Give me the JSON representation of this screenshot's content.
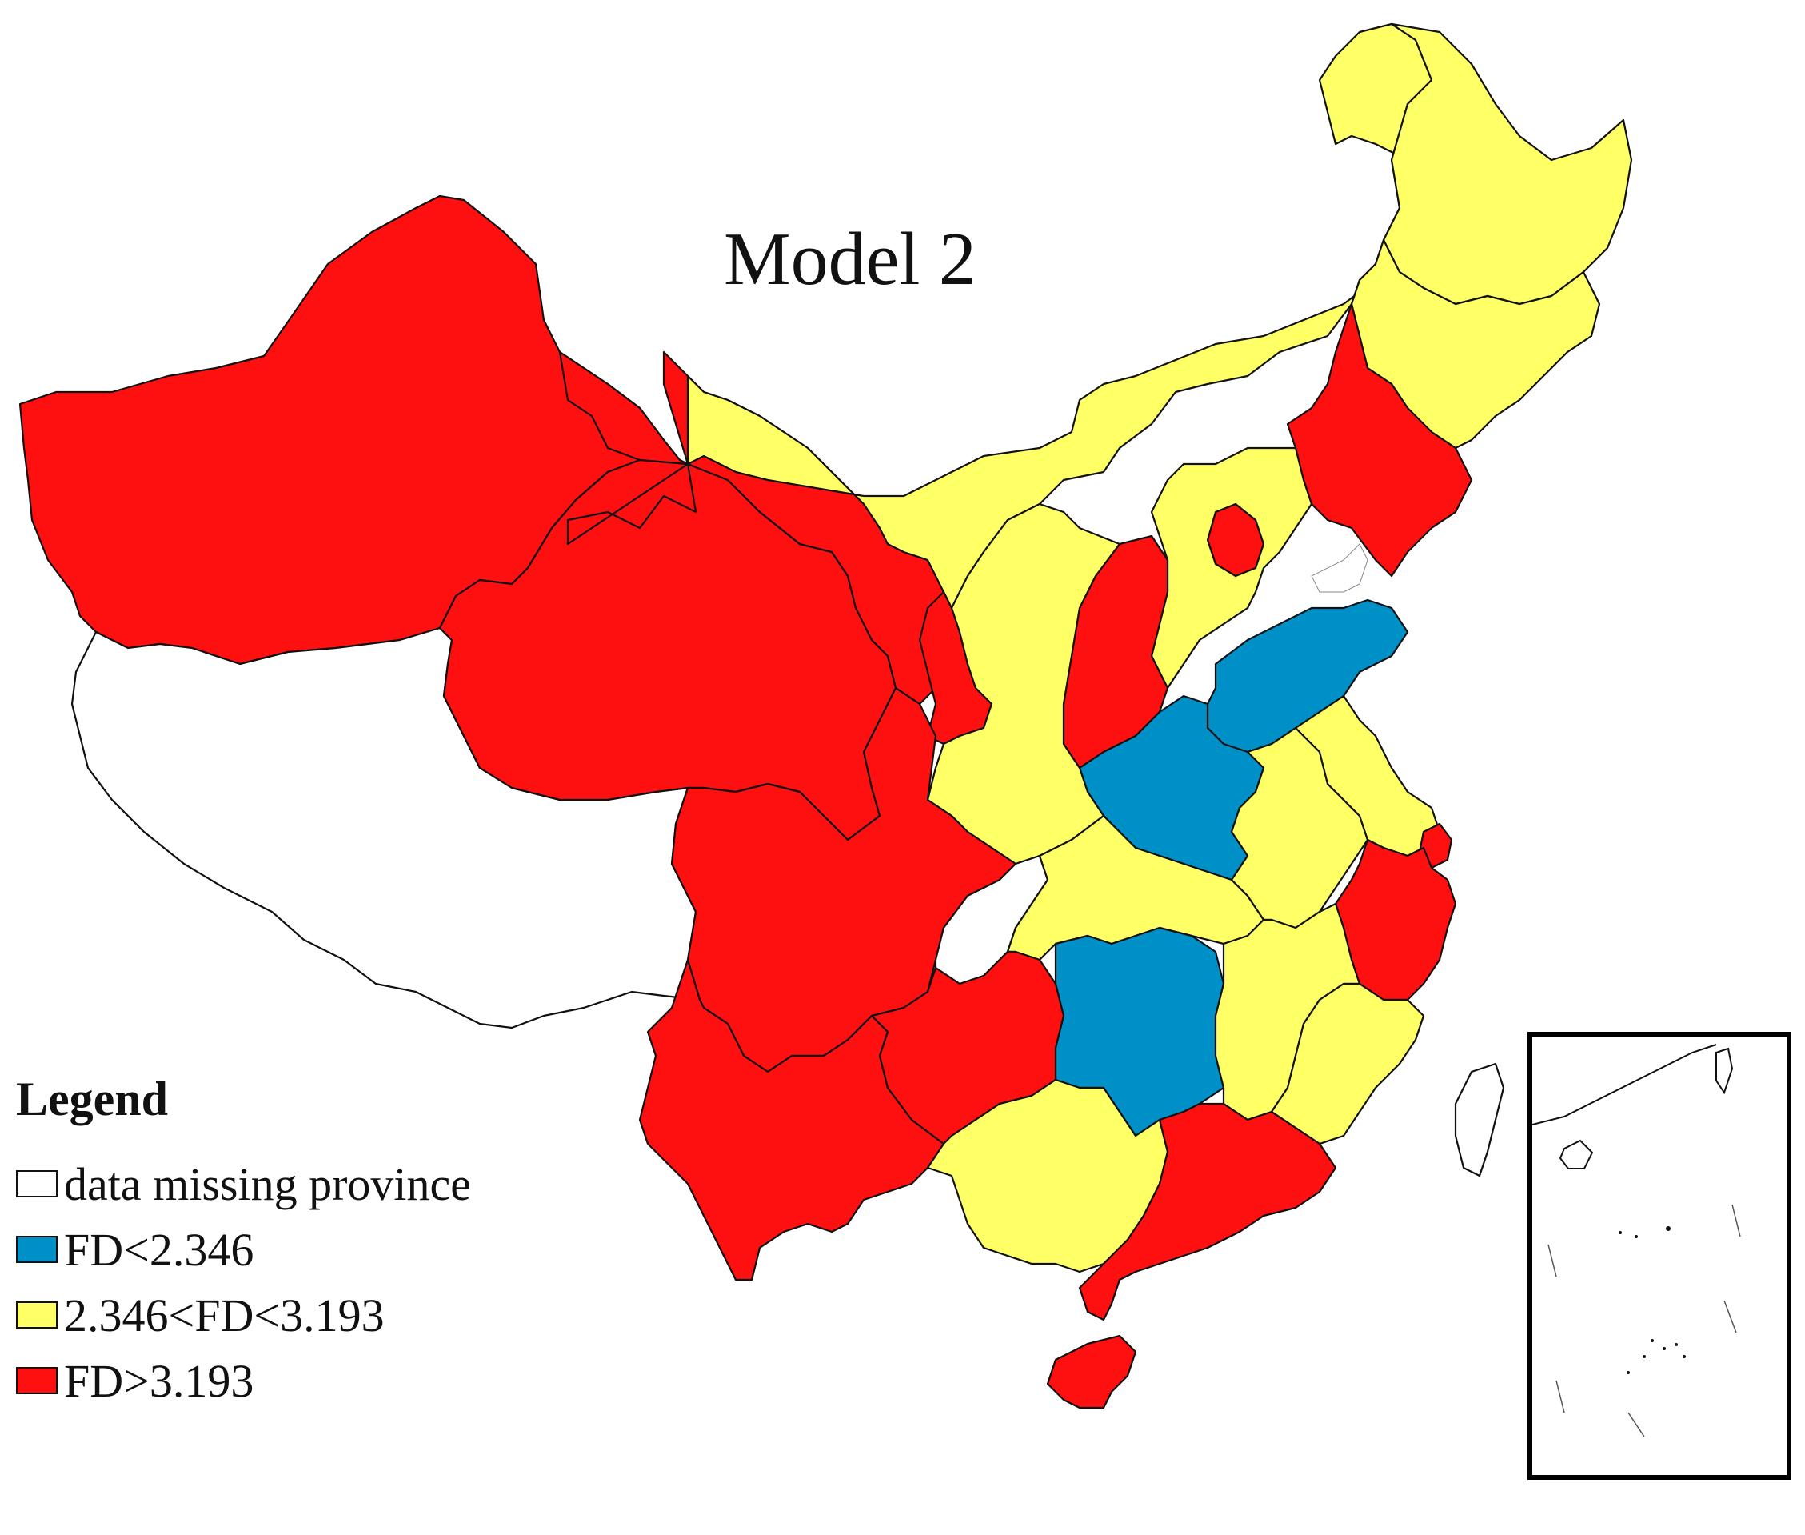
{
  "map": {
    "title": "Model 2",
    "colors": {
      "missing": "#ffffff",
      "low": "#0090c8",
      "mid": "#ffff66",
      "high": "#ff1010"
    },
    "legend": {
      "title": "Legend",
      "items": [
        {
          "label": "data missing province",
          "class": "missing"
        },
        {
          "label": "FD<2.346",
          "class": "low"
        },
        {
          "label": "2.346<FD<3.193",
          "class": "mid"
        },
        {
          "label": "FD>3.193",
          "class": "high"
        }
      ]
    },
    "regions": [
      {
        "id": "xinjiang",
        "class": "high"
      },
      {
        "id": "tibet",
        "class": "missing"
      },
      {
        "id": "gansu",
        "class": "high"
      },
      {
        "id": "qinghai",
        "class": "high"
      },
      {
        "id": "inner-mongolia",
        "class": "mid"
      },
      {
        "id": "heilongjiang",
        "class": "mid"
      },
      {
        "id": "jilin",
        "class": "mid"
      },
      {
        "id": "liaoning",
        "class": "high"
      },
      {
        "id": "beijing",
        "class": "high"
      },
      {
        "id": "hebei",
        "class": "mid"
      },
      {
        "id": "shanxi",
        "class": "high"
      },
      {
        "id": "shandong",
        "class": "low"
      },
      {
        "id": "henan",
        "class": "low"
      },
      {
        "id": "ningxia",
        "class": "high"
      },
      {
        "id": "shaanxi",
        "class": "mid"
      },
      {
        "id": "sichuan",
        "class": "high"
      },
      {
        "id": "chongqing",
        "class": "missing"
      },
      {
        "id": "hubei",
        "class": "mid"
      },
      {
        "id": "anhui",
        "class": "mid"
      },
      {
        "id": "jiangsu",
        "class": "mid"
      },
      {
        "id": "shanghai",
        "class": "high"
      },
      {
        "id": "zhejiang",
        "class": "high"
      },
      {
        "id": "hunan",
        "class": "low"
      },
      {
        "id": "jiangxi",
        "class": "mid"
      },
      {
        "id": "fujian",
        "class": "mid"
      },
      {
        "id": "yunnan",
        "class": "high"
      },
      {
        "id": "guizhou",
        "class": "high"
      },
      {
        "id": "guangxi",
        "class": "mid"
      },
      {
        "id": "guangdong",
        "class": "high"
      },
      {
        "id": "hainan",
        "class": "high"
      },
      {
        "id": "taiwan",
        "class": "missing"
      }
    ]
  }
}
